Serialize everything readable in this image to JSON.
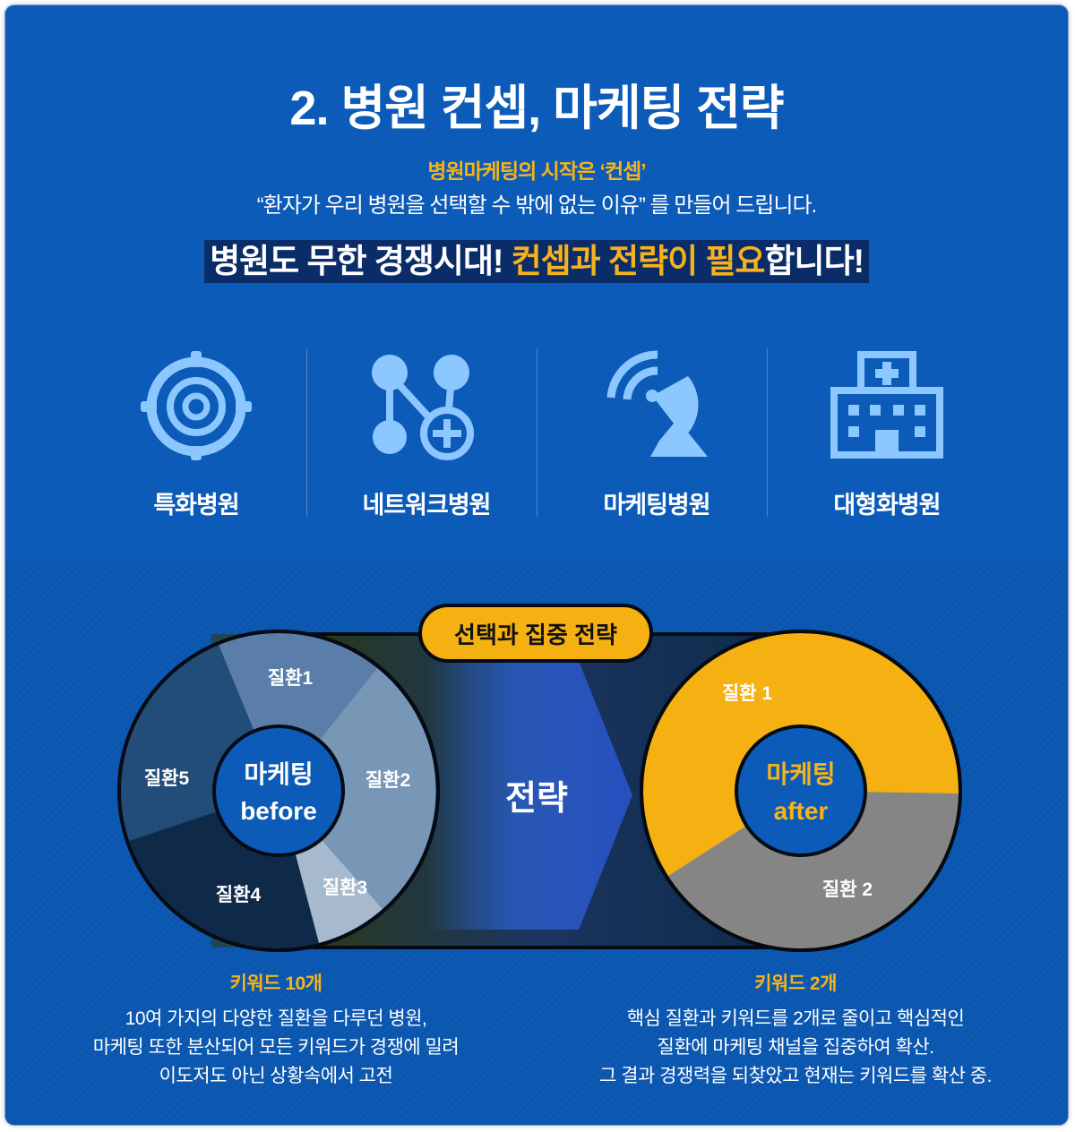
{
  "header": {
    "title": "2. 병원 컨셉, 마케팅 전략",
    "subtitle": "병원마케팅의 시작은 ‘컨셉’",
    "quote": "“환자가 우리 병원을 선택할 수 밖에 없는 이유” 를 만들어 드립니다.",
    "banner_part1": "병원도 무한 경쟁시대! ",
    "banner_highlight": "컨셉과 전략이 필요",
    "banner_part2": "합니다!"
  },
  "categories": [
    {
      "label": "특화병원",
      "icon": "target-icon"
    },
    {
      "label": "네트워크병원",
      "icon": "network-icon"
    },
    {
      "label": "마케팅병원",
      "icon": "satellite-dish-icon"
    },
    {
      "label": "대형화병원",
      "icon": "hospital-building-icon"
    }
  ],
  "strategy": {
    "badge": "선택과 집중 전략",
    "arrow_label": "전략"
  },
  "before": {
    "center_line1": "마케팅",
    "center_line2": "before",
    "segments": [
      "질환1",
      "질환2",
      "질환3",
      "질환4",
      "질환5"
    ],
    "caption_title": "키워드 10개",
    "caption_lines": [
      "10여 가지의 다양한 질환을 다루던 병원,",
      "마케팅 또한 분산되어 모든 키워드가 경쟁에 밀려",
      "이도저도 아닌 상황속에서 고전"
    ]
  },
  "after": {
    "center_line1": "마케팅",
    "center_line2": "after",
    "segments": [
      "질환 1",
      "질환 2"
    ],
    "caption_title": "키워드 2개",
    "caption_lines": [
      "핵심 질환과 키워드를 2개로 줄이고 핵심적인",
      "질환에 마케팅 채널을 집중하여 확산.",
      "그 결과 경쟁력을 되찾았고 현재는 키워드를 확산 중."
    ]
  },
  "colors": {
    "background": "#0c5bb8",
    "accent_yellow": "#f5b41a",
    "icon_blue": "#8cc8ff",
    "after_gray": "#858585"
  }
}
